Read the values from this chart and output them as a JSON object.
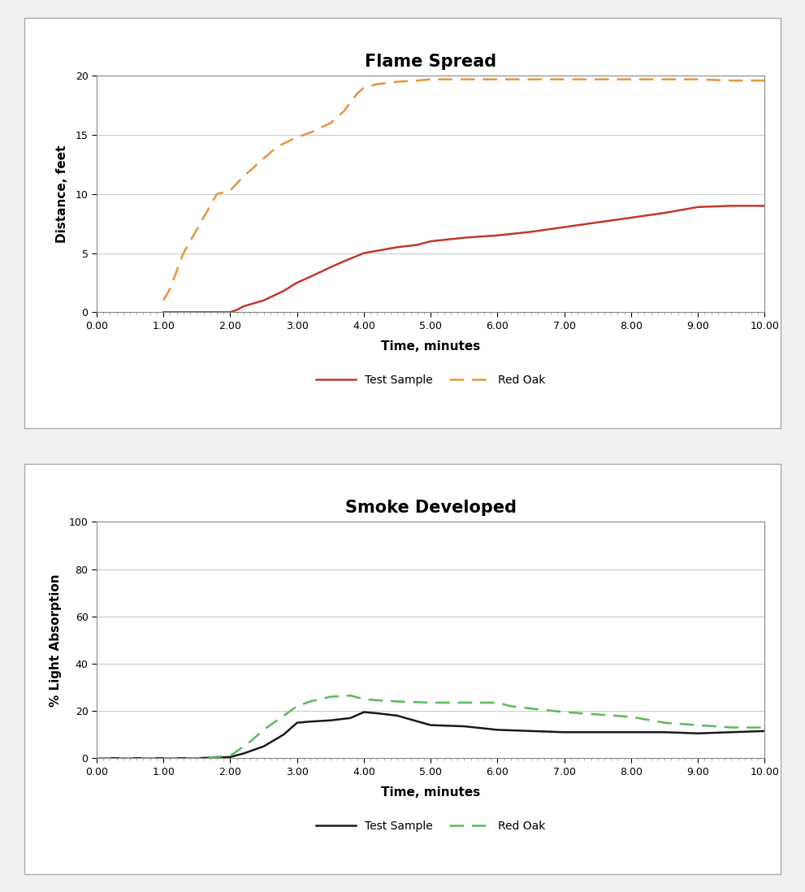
{
  "chart1": {
    "title": "Flame Spread",
    "xlabel": "Time, minutes",
    "ylabel": "Distance, feet",
    "xlim": [
      0.0,
      10.0
    ],
    "ylim": [
      0,
      20
    ],
    "xticks": [
      0.0,
      1.0,
      2.0,
      3.0,
      4.0,
      5.0,
      6.0,
      7.0,
      8.0,
      9.0,
      10.0
    ],
    "yticks": [
      0,
      5,
      10,
      15,
      20
    ],
    "test_sample_x": [
      1.0,
      1.5,
      2.0,
      2.1,
      2.2,
      2.5,
      2.8,
      3.0,
      3.2,
      3.5,
      3.7,
      4.0,
      4.2,
      4.5,
      4.8,
      5.0,
      5.5,
      6.0,
      6.5,
      7.0,
      7.5,
      8.0,
      8.5,
      9.0,
      9.5,
      10.0
    ],
    "test_sample_y": [
      0.0,
      0.0,
      0.0,
      0.2,
      0.5,
      1.0,
      1.8,
      2.5,
      3.0,
      3.8,
      4.3,
      5.0,
      5.2,
      5.5,
      5.7,
      6.0,
      6.3,
      6.5,
      6.8,
      7.2,
      7.6,
      8.0,
      8.4,
      8.9,
      9.0,
      9.0
    ],
    "red_oak_x": [
      1.0,
      1.1,
      1.2,
      1.3,
      1.5,
      1.7,
      1.8,
      2.0,
      2.2,
      2.5,
      2.7,
      3.0,
      3.2,
      3.5,
      3.7,
      3.9,
      4.0,
      4.2,
      4.5,
      4.8,
      5.0,
      5.2,
      5.5,
      6.0,
      6.5,
      7.0,
      7.5,
      8.0,
      8.5,
      9.0,
      9.5,
      10.0
    ],
    "red_oak_y": [
      1.0,
      2.0,
      3.5,
      5.0,
      7.0,
      9.0,
      10.0,
      10.3,
      11.5,
      13.0,
      14.0,
      14.8,
      15.2,
      16.0,
      17.0,
      18.5,
      19.0,
      19.3,
      19.5,
      19.6,
      19.7,
      19.7,
      19.7,
      19.7,
      19.7,
      19.7,
      19.7,
      19.7,
      19.7,
      19.7,
      19.6,
      19.6
    ],
    "test_sample_color": "#C0392B",
    "red_oak_color": "#E8943A",
    "legend_labels": [
      "Test Sample",
      "Red Oak"
    ]
  },
  "chart2": {
    "title": "Smoke Developed",
    "xlabel": "Time, minutes",
    "ylabel": "% Light Absorption",
    "xlim": [
      0.0,
      10.0
    ],
    "ylim": [
      0,
      100
    ],
    "xticks": [
      0.0,
      1.0,
      2.0,
      3.0,
      4.0,
      5.0,
      6.0,
      7.0,
      8.0,
      9.0,
      10.0
    ],
    "yticks": [
      0,
      20,
      40,
      60,
      80,
      100
    ],
    "test_sample_x": [
      0.0,
      0.5,
      1.0,
      1.5,
      2.0,
      2.2,
      2.5,
      2.8,
      3.0,
      3.2,
      3.5,
      3.8,
      4.0,
      4.2,
      4.5,
      5.0,
      5.5,
      6.0,
      6.5,
      7.0,
      7.5,
      8.0,
      8.5,
      9.0,
      9.5,
      10.0
    ],
    "test_sample_y": [
      0.0,
      0.0,
      0.0,
      0.0,
      0.5,
      2.0,
      5.0,
      10.0,
      15.0,
      15.5,
      16.0,
      17.0,
      19.5,
      19.0,
      18.0,
      14.0,
      13.5,
      12.0,
      11.5,
      11.0,
      11.0,
      11.0,
      11.0,
      10.5,
      11.0,
      11.5
    ],
    "red_oak_x": [
      0.0,
      0.5,
      1.0,
      1.5,
      2.0,
      2.1,
      2.3,
      2.5,
      2.8,
      3.0,
      3.2,
      3.5,
      3.8,
      4.0,
      4.2,
      4.5,
      5.0,
      5.5,
      6.0,
      6.2,
      6.5,
      7.0,
      7.5,
      8.0,
      8.5,
      9.0,
      9.5,
      10.0
    ],
    "red_oak_y": [
      0.0,
      0.0,
      0.0,
      0.0,
      1.0,
      3.0,
      7.0,
      12.0,
      18.0,
      22.0,
      24.0,
      26.0,
      26.5,
      25.0,
      24.5,
      24.0,
      23.5,
      23.5,
      23.5,
      22.0,
      21.0,
      19.5,
      18.5,
      17.5,
      15.0,
      14.0,
      13.0,
      13.0
    ],
    "test_sample_color": "#1a1a1a",
    "red_oak_color": "#5cb85c",
    "legend_labels": [
      "Test Sample",
      "Red Oak"
    ]
  },
  "background_color": "#ffffff",
  "outer_bg": "#f0f0f0",
  "title_fontsize": 15,
  "axis_label_fontsize": 11,
  "tick_fontsize": 9,
  "legend_fontsize": 10
}
